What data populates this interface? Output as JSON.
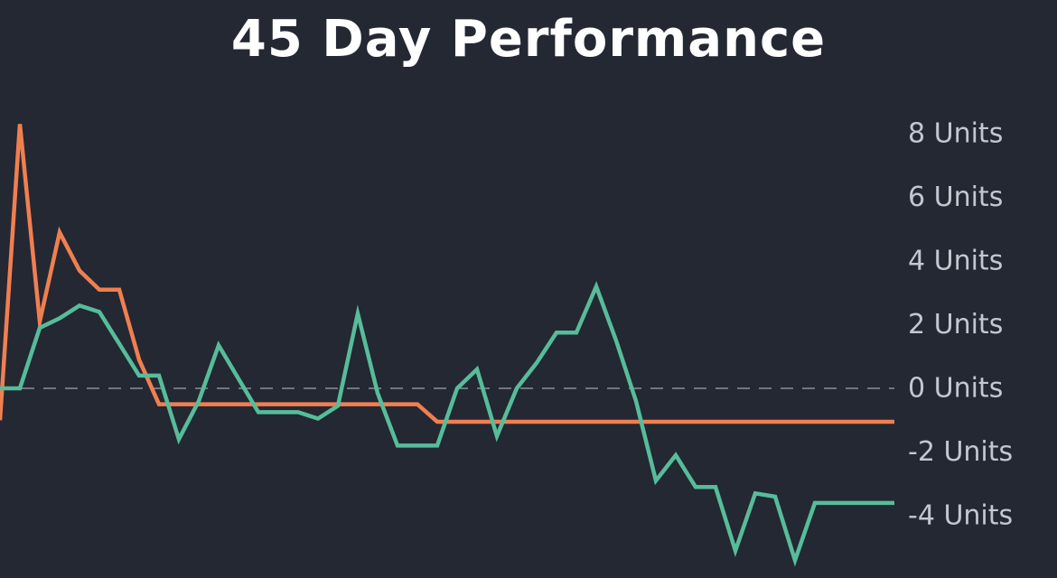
{
  "chart_data": {
    "type": "line",
    "title": "45 Day Performance",
    "xlabel": "",
    "ylabel": "",
    "ylim": [
      -5.2,
      8.5
    ],
    "grid": false,
    "legend": "none",
    "zero_line": true,
    "yticks": [
      8,
      6,
      4,
      2,
      0,
      -2,
      -4
    ],
    "ytick_labels": [
      "8 Units",
      "6 Units",
      "4 Units",
      "2 Units",
      "0 Units",
      "-2 Units",
      "-4 Units"
    ],
    "x": [
      0,
      1,
      2,
      3,
      4,
      5,
      6,
      7,
      8,
      9,
      10,
      11,
      12,
      13,
      14,
      15,
      16,
      17,
      18,
      19,
      20,
      21,
      22,
      23,
      24,
      25,
      26,
      27,
      28,
      29,
      30,
      31,
      32,
      33,
      34,
      35,
      36,
      37,
      38,
      39,
      40,
      41,
      42,
      43,
      44,
      45
    ],
    "series": [
      {
        "color": "#F07F50",
        "values": [
          -1,
          8.3,
          2.1,
          4.9,
          3.7,
          3.1,
          3.1,
          0.9,
          -0.5,
          -0.5,
          -0.5,
          -0.5,
          -0.5,
          -0.5,
          -0.5,
          -0.5,
          -0.5,
          -0.5,
          -0.5,
          -0.5,
          -0.5,
          -0.5,
          -1.05,
          -1.05,
          -1.05,
          -1.05,
          -1.05,
          -1.05,
          -1.05,
          -1.05,
          -1.05,
          -1.05,
          -1.05,
          -1.05,
          -1.05,
          -1.05,
          -1.05,
          -1.05,
          -1.05,
          -1.05,
          -1.05,
          -1.05,
          -1.05,
          -1.05,
          -1.05,
          -1.05
        ]
      },
      {
        "color": "#57BC9A",
        "values": [
          0,
          0,
          1.9,
          2.2,
          2.6,
          2.4,
          1.4,
          0.4,
          0.4,
          -1.6,
          -0.4,
          1.35,
          0.3,
          -0.75,
          -0.75,
          -0.75,
          -0.95,
          -0.55,
          2.35,
          -0.15,
          -1.8,
          -1.8,
          -1.8,
          0,
          0.6,
          -1.5,
          0,
          0.8,
          1.75,
          1.75,
          3.2,
          1.5,
          -0.4,
          -2.9,
          -2.1,
          -3.1,
          -3.1,
          -5.1,
          -3.3,
          -3.4,
          -5.4,
          -3.6,
          -3.6,
          -3.6,
          -3.6,
          -3.6
        ]
      }
    ]
  }
}
